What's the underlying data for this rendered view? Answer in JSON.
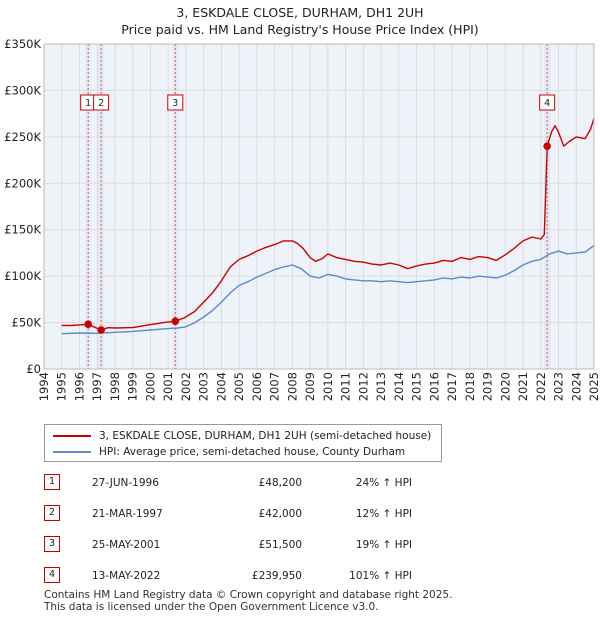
{
  "title": {
    "line1": "3, ESKDALE CLOSE, DURHAM, DH1 2UH",
    "line2": "Price paid vs. HM Land Registry's House Price Index (HPI)"
  },
  "legend": {
    "property": "3, ESKDALE CLOSE, DURHAM, DH1 2UH (semi-detached house)",
    "hpi": "HPI: Average price, semi-detached house, County Durham"
  },
  "sales": [
    {
      "num": "1",
      "date": "27-JUN-1996",
      "price": "£48,200",
      "hpi": "24% ↑ HPI"
    },
    {
      "num": "2",
      "date": "21-MAR-1997",
      "price": "£42,000",
      "hpi": "12% ↑ HPI"
    },
    {
      "num": "3",
      "date": "25-MAY-2001",
      "price": "£51,500",
      "hpi": "19% ↑ HPI"
    },
    {
      "num": "4",
      "date": "13-MAY-2022",
      "price": "£239,950",
      "hpi": "101% ↑ HPI"
    }
  ],
  "footer": {
    "line1": "Contains HM Land Registry data © Crown copyright and database right 2025.",
    "line2": "This data is licensed under the Open Government Licence v3.0."
  },
  "colors": {
    "property": "#cc0000",
    "hpi": "#5b8cc8",
    "grid": "#dddddd",
    "plot_bg": "#eef2f9",
    "sale_band": "#e2e9f5",
    "sale_line": "#d06060"
  },
  "chart_data": {
    "type": "line",
    "title": "Price paid vs. HM Land Registry's House Price Index (HPI)",
    "xlabel": "",
    "ylabel": "",
    "xlim": [
      1994.0,
      2025.0
    ],
    "ylim": [
      0,
      350000
    ],
    "x_ticks": [
      "1994",
      "1995",
      "1996",
      "1997",
      "1998",
      "1999",
      "2000",
      "2001",
      "2002",
      "2003",
      "2004",
      "2005",
      "2006",
      "2007",
      "2008",
      "2009",
      "2010",
      "2011",
      "2012",
      "2013",
      "2014",
      "2015",
      "2016",
      "2017",
      "2018",
      "2019",
      "2020",
      "2021",
      "2022",
      "2023",
      "2024",
      "2025"
    ],
    "y_ticks": [
      {
        "value": 0,
        "label": "£0"
      },
      {
        "value": 50000,
        "label": "£50K"
      },
      {
        "value": 100000,
        "label": "£100K"
      },
      {
        "value": 150000,
        "label": "£150K"
      },
      {
        "value": 200000,
        "label": "£200K"
      },
      {
        "value": 250000,
        "label": "£250K"
      },
      {
        "value": 300000,
        "label": "£300K"
      },
      {
        "value": 350000,
        "label": "£350K"
      }
    ],
    "grid": true,
    "legend_position": "below",
    "series": [
      {
        "name": "3, ESKDALE CLOSE, DURHAM, DH1 2UH (semi-detached house)",
        "color": "#cc0000",
        "points": [
          [
            1995.0,
            47000
          ],
          [
            1995.5,
            46800
          ],
          [
            1996.0,
            47500
          ],
          [
            1996.49,
            48200
          ],
          [
            1996.8,
            45500
          ],
          [
            1997.22,
            42000
          ],
          [
            1997.6,
            44500
          ],
          [
            1998.0,
            44200
          ],
          [
            1999.0,
            44600
          ],
          [
            2000.0,
            47800
          ],
          [
            2000.8,
            50200
          ],
          [
            2001.4,
            51500
          ],
          [
            2001.9,
            55000
          ],
          [
            2002.5,
            62000
          ],
          [
            2003.0,
            72000
          ],
          [
            2003.5,
            82000
          ],
          [
            2004.0,
            95000
          ],
          [
            2004.5,
            110000
          ],
          [
            2005.0,
            118000
          ],
          [
            2005.5,
            122000
          ],
          [
            2006.0,
            127000
          ],
          [
            2006.5,
            131000
          ],
          [
            2007.0,
            134000
          ],
          [
            2007.5,
            138000
          ],
          [
            2008.0,
            138000
          ],
          [
            2008.3,
            135000
          ],
          [
            2008.6,
            130000
          ],
          [
            2009.0,
            120000
          ],
          [
            2009.3,
            116000
          ],
          [
            2009.7,
            119000
          ],
          [
            2010.0,
            124000
          ],
          [
            2010.5,
            120000
          ],
          [
            2011.0,
            118000
          ],
          [
            2011.5,
            116000
          ],
          [
            2012.0,
            115000
          ],
          [
            2012.5,
            113000
          ],
          [
            2013.0,
            112000
          ],
          [
            2013.5,
            114000
          ],
          [
            2014.0,
            112000
          ],
          [
            2014.5,
            108000
          ],
          [
            2015.0,
            111000
          ],
          [
            2015.5,
            113000
          ],
          [
            2016.0,
            114000
          ],
          [
            2016.5,
            117000
          ],
          [
            2017.0,
            116000
          ],
          [
            2017.5,
            120000
          ],
          [
            2018.0,
            118000
          ],
          [
            2018.5,
            121000
          ],
          [
            2019.0,
            120000
          ],
          [
            2019.5,
            117000
          ],
          [
            2020.0,
            123000
          ],
          [
            2020.5,
            130000
          ],
          [
            2021.0,
            138000
          ],
          [
            2021.5,
            142000
          ],
          [
            2022.0,
            140000
          ],
          [
            2022.2,
            145000
          ],
          [
            2022.36,
            239950
          ],
          [
            2022.6,
            255000
          ],
          [
            2022.8,
            262000
          ],
          [
            2023.0,
            255000
          ],
          [
            2023.3,
            240000
          ],
          [
            2023.6,
            245000
          ],
          [
            2024.0,
            250000
          ],
          [
            2024.5,
            248000
          ],
          [
            2024.8,
            258000
          ],
          [
            2025.0,
            270000
          ]
        ]
      },
      {
        "name": "HPI: Average price, semi-detached house, County Durham",
        "color": "#5b8cc8",
        "points": [
          [
            1995.0,
            38000
          ],
          [
            1996.0,
            38800
          ],
          [
            1997.0,
            38500
          ],
          [
            1998.0,
            39500
          ],
          [
            1999.0,
            40500
          ],
          [
            2000.0,
            42000
          ],
          [
            2001.0,
            43500
          ],
          [
            2001.5,
            44000
          ],
          [
            2002.0,
            45500
          ],
          [
            2002.5,
            50000
          ],
          [
            2003.0,
            56000
          ],
          [
            2003.5,
            63000
          ],
          [
            2004.0,
            72000
          ],
          [
            2004.5,
            82000
          ],
          [
            2005.0,
            90000
          ],
          [
            2005.5,
            94000
          ],
          [
            2006.0,
            99000
          ],
          [
            2006.5,
            103000
          ],
          [
            2007.0,
            107000
          ],
          [
            2007.5,
            110000
          ],
          [
            2008.0,
            112000
          ],
          [
            2008.5,
            108000
          ],
          [
            2009.0,
            100000
          ],
          [
            2009.5,
            98000
          ],
          [
            2010.0,
            102000
          ],
          [
            2010.5,
            100000
          ],
          [
            2011.0,
            97000
          ],
          [
            2011.5,
            96000
          ],
          [
            2012.0,
            95000
          ],
          [
            2012.5,
            95000
          ],
          [
            2013.0,
            94000
          ],
          [
            2013.5,
            95000
          ],
          [
            2014.0,
            94000
          ],
          [
            2014.5,
            93000
          ],
          [
            2015.0,
            94000
          ],
          [
            2015.5,
            95000
          ],
          [
            2016.0,
            96000
          ],
          [
            2016.5,
            98000
          ],
          [
            2017.0,
            97000
          ],
          [
            2017.5,
            99000
          ],
          [
            2018.0,
            98000
          ],
          [
            2018.5,
            100000
          ],
          [
            2019.0,
            99000
          ],
          [
            2019.5,
            98000
          ],
          [
            2020.0,
            101000
          ],
          [
            2020.5,
            106000
          ],
          [
            2021.0,
            112000
          ],
          [
            2021.5,
            116000
          ],
          [
            2022.0,
            118000
          ],
          [
            2022.5,
            124000
          ],
          [
            2023.0,
            127000
          ],
          [
            2023.5,
            124000
          ],
          [
            2024.0,
            125000
          ],
          [
            2024.5,
            126000
          ],
          [
            2025.0,
            133000
          ]
        ]
      }
    ],
    "sales": [
      {
        "label": "1",
        "x": 1996.49,
        "price": 48200
      },
      {
        "label": "2",
        "x": 1997.22,
        "price": 42000
      },
      {
        "label": "3",
        "x": 2001.4,
        "price": 51500
      },
      {
        "label": "4",
        "x": 2022.36,
        "price": 239950
      }
    ],
    "sale_label_y": 287000
  }
}
